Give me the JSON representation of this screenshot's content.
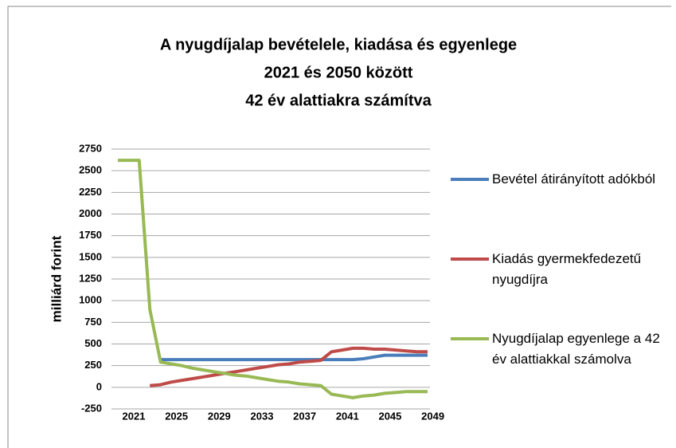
{
  "chart_data": {
    "type": "line",
    "title": [
      "A nyugdíjalap bevételele, kiadása és egyenlege",
      "2021 és 2050 között",
      "42 év alattiakra számítva"
    ],
    "y_label": "milliárd forint",
    "categories": [
      "2021",
      null,
      null,
      null,
      "2025",
      null,
      null,
      null,
      "2029",
      null,
      null,
      null,
      "2033",
      null,
      null,
      null,
      "2037",
      null,
      null,
      null,
      "2041",
      null,
      null,
      null,
      "2045",
      null,
      null,
      null,
      "2049",
      null
    ],
    "series": [
      {
        "name": "Bevétel átirányított adókból",
        "color": "#4a7ebb",
        "values": [
          null,
          null,
          null,
          null,
          320,
          320,
          320,
          320,
          320,
          320,
          320,
          320,
          320,
          320,
          320,
          320,
          320,
          320,
          320,
          320,
          320,
          320,
          320,
          330,
          350,
          370,
          370,
          370,
          370,
          370
        ]
      },
      {
        "name": "Kiadás gyermekfedezetű nyugdíjra",
        "color": "#be4b48",
        "values": [
          null,
          null,
          null,
          20,
          30,
          60,
          80,
          100,
          120,
          140,
          160,
          180,
          200,
          220,
          240,
          260,
          270,
          290,
          300,
          310,
          410,
          430,
          450,
          450,
          440,
          440,
          430,
          420,
          410,
          410
        ]
      },
      {
        "name": "Nyugdíjalap egyenlege a 42 év alattiakkal számolva",
        "color": "#98b954",
        "values": [
          2620,
          2620,
          2620,
          900,
          290,
          270,
          250,
          220,
          200,
          180,
          160,
          140,
          130,
          110,
          90,
          70,
          60,
          40,
          30,
          20,
          -80,
          -100,
          -120,
          -100,
          -90,
          -70,
          -60,
          -50,
          -50,
          -50
        ]
      }
    ],
    "ylim": [
      -250,
      2750
    ],
    "yticks": [
      -250,
      0,
      250,
      500,
      750,
      1000,
      1250,
      1500,
      1750,
      2000,
      2250,
      2500,
      2750
    ],
    "grid": true,
    "legend": "right"
  }
}
